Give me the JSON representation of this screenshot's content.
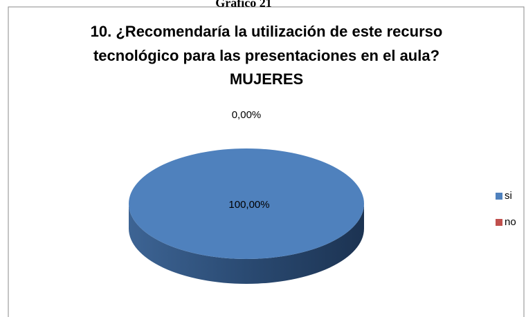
{
  "caption": "Gráfico 21",
  "chart_data": {
    "type": "pie",
    "title": [
      "10. ¿Recomendaría la utilización de este recurso",
      "tecnológico para las presentaciones en el aula?",
      "MUJERES"
    ],
    "categories": [
      "si",
      "no"
    ],
    "values": [
      100,
      0
    ],
    "value_labels": [
      "100,00%",
      "0,00%"
    ],
    "colors": [
      "#4f81bd",
      "#c0504d"
    ],
    "legend": "right"
  }
}
